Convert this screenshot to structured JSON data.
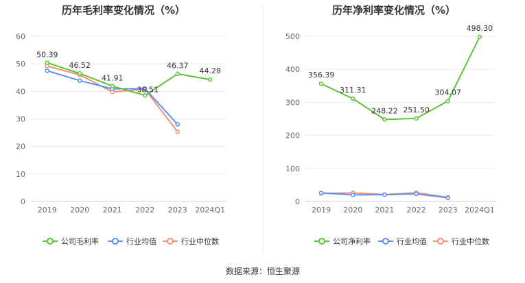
{
  "source": "数据来源：恒生聚源",
  "colors": {
    "company": "#5ec435",
    "industry_avg": "#5b8ff9",
    "industry_median": "#f6906c",
    "divider": "#e5e5e5",
    "grid": "#e8e8e8"
  },
  "chart_data": [
    {
      "type": "line",
      "title": "历年毛利率变化情况（%）",
      "categories": [
        "2019",
        "2020",
        "2021",
        "2022",
        "2023",
        "2024Q1"
      ],
      "ylim": [
        0,
        60
      ],
      "yticks": [
        "0",
        "10",
        "20",
        "30",
        "40",
        "50",
        "60"
      ],
      "grid": true,
      "legend_position": "bottom",
      "series": [
        {
          "name": "公司毛利率",
          "color": "#5ec435",
          "values": [
            50.39,
            46.52,
            41.91,
            38.51,
            46.37,
            44.28
          ],
          "labels": [
            "50.39",
            "46.52",
            "41.91",
            "38.51",
            "46.37",
            "44.28"
          ]
        },
        {
          "name": "行业均值",
          "color": "#5b8ff9",
          "values": [
            47.5,
            43.9,
            40.9,
            41.0,
            28.0,
            null
          ]
        },
        {
          "name": "行业中位数",
          "color": "#f6906c",
          "values": [
            49.2,
            46.0,
            39.8,
            40.8,
            25.3,
            null
          ]
        }
      ]
    },
    {
      "type": "line",
      "title": "历年净利率变化情况（%）",
      "categories": [
        "2019",
        "2020",
        "2021",
        "2022",
        "2023",
        "2024Q1"
      ],
      "ylim": [
        0,
        500
      ],
      "yticks": [
        "0",
        "100",
        "200",
        "300",
        "400",
        "500"
      ],
      "grid": true,
      "legend_position": "bottom",
      "series": [
        {
          "name": "公司净利率",
          "color": "#5ec435",
          "values": [
            356.39,
            311.31,
            248.22,
            251.5,
            304.07,
            498.3
          ],
          "labels": [
            "356.39",
            "311.31",
            "248.22",
            "251.50",
            "304.07",
            "498.30"
          ]
        },
        {
          "name": "行业均值",
          "color": "#5b8ff9",
          "values": [
            26.0,
            20.0,
            20.5,
            23.0,
            11.0,
            null
          ]
        },
        {
          "name": "行业中位数",
          "color": "#f6906c",
          "values": [
            24.0,
            26.0,
            21.0,
            26.5,
            12.5,
            null
          ]
        }
      ]
    }
  ]
}
